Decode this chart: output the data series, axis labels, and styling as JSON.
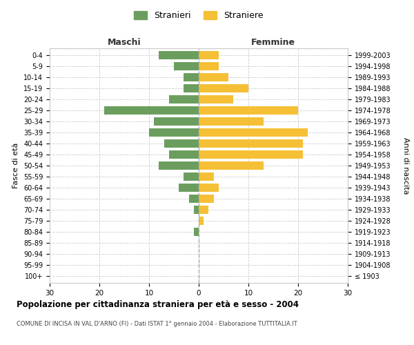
{
  "age_groups": [
    "0-4",
    "5-9",
    "10-14",
    "15-19",
    "20-24",
    "25-29",
    "30-34",
    "35-39",
    "40-44",
    "45-49",
    "50-54",
    "55-59",
    "60-64",
    "65-69",
    "70-74",
    "75-79",
    "80-84",
    "85-89",
    "90-94",
    "95-99",
    "100+"
  ],
  "birth_years": [
    "1999-2003",
    "1994-1998",
    "1989-1993",
    "1984-1988",
    "1979-1983",
    "1974-1978",
    "1969-1973",
    "1964-1968",
    "1959-1963",
    "1954-1958",
    "1949-1953",
    "1944-1948",
    "1939-1943",
    "1934-1938",
    "1929-1933",
    "1924-1928",
    "1919-1923",
    "1914-1918",
    "1909-1913",
    "1904-1908",
    "≤ 1903"
  ],
  "males": [
    8,
    5,
    3,
    3,
    6,
    19,
    9,
    10,
    7,
    6,
    8,
    3,
    4,
    2,
    1,
    0,
    1,
    0,
    0,
    0,
    0
  ],
  "females": [
    4,
    4,
    6,
    10,
    7,
    20,
    13,
    22,
    21,
    21,
    13,
    3,
    4,
    3,
    2,
    1,
    0,
    0,
    0,
    0,
    0
  ],
  "male_color": "#6b9e5e",
  "female_color": "#f5c035",
  "title": "Popolazione per cittadinanza straniera per età e sesso - 2004",
  "subtitle": "COMUNE DI INCISA IN VAL D'ARNO (FI) - Dati ISTAT 1° gennaio 2004 - Elaborazione TUTTITALIA.IT",
  "legend_male": "Stranieri",
  "legend_female": "Straniere",
  "xlabel_left": "Maschi",
  "xlabel_right": "Femmine",
  "ylabel_left": "Fasce di età",
  "ylabel_right": "Anni di nascita",
  "xlim": 30,
  "background_color": "#ffffff",
  "grid_color": "#cccccc"
}
